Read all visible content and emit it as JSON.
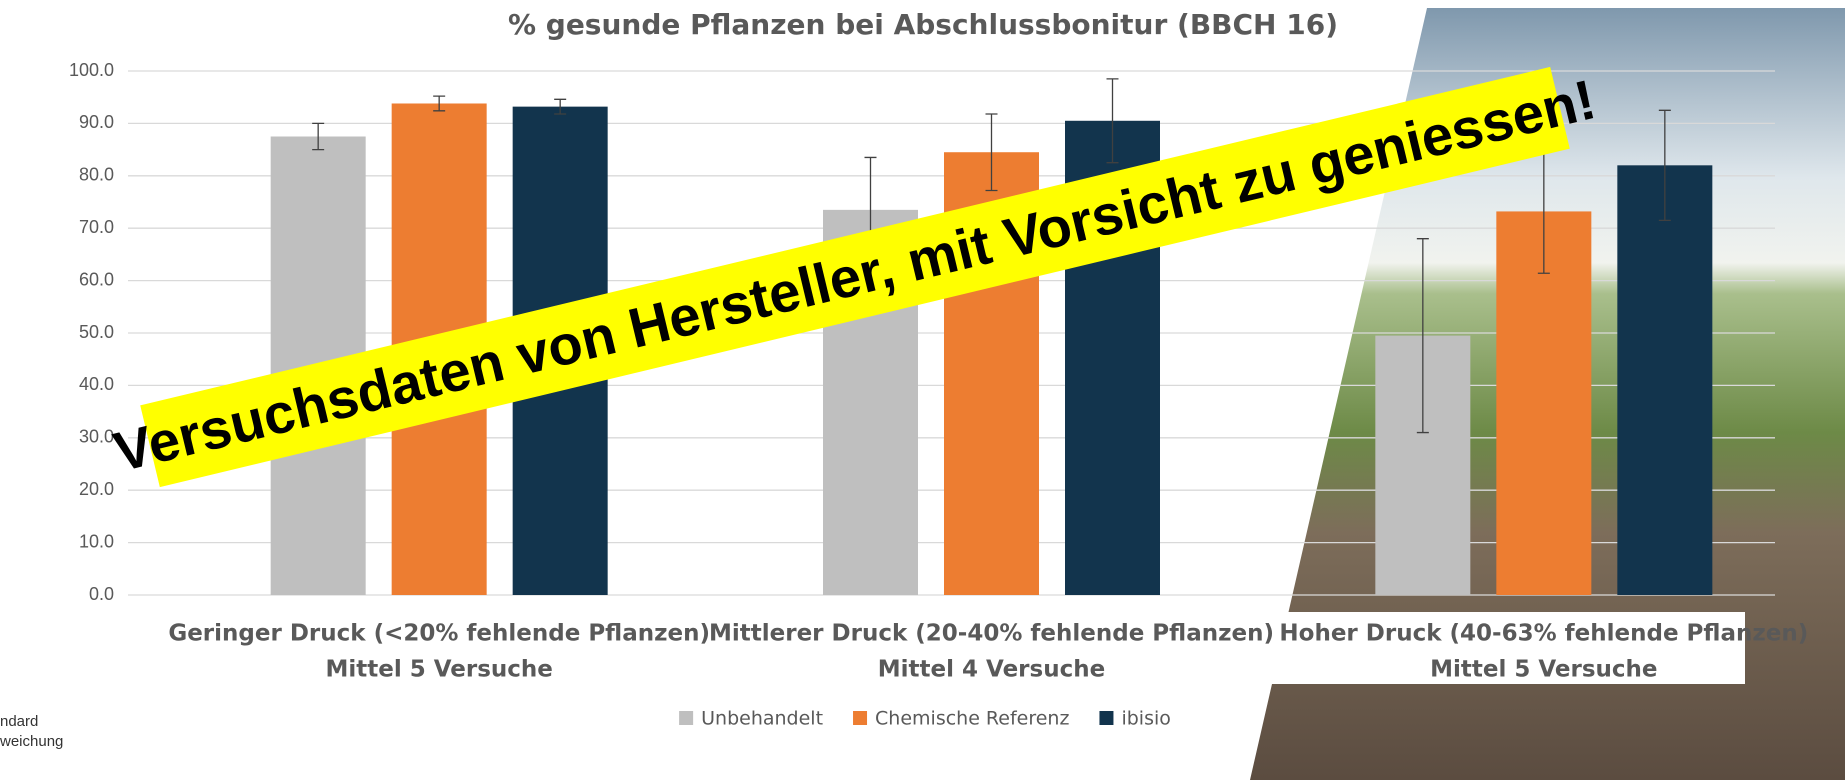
{
  "chart_data": {
    "type": "bar",
    "title": "% gesunde Pflanzen bei Abschlussbonitur (BBCH 16)",
    "categories": [
      [
        "Geringer Druck (<20% fehlende Pflanzen)",
        "Mittel 5 Versuche"
      ],
      [
        "Mittlerer Druck (20-40% fehlende Pflanzen)",
        "Mittel 4 Versuche"
      ],
      [
        "Hoher Druck (40-63% fehlende Pflanzen)",
        "Mittel 5 Versuche"
      ]
    ],
    "series": [
      {
        "name": "Unbehandelt",
        "color": "#bfbfbf",
        "values": [
          87.5,
          73.5,
          49.5
        ],
        "errors": [
          2.5,
          10,
          18.5
        ]
      },
      {
        "name": "Chemische Referenz",
        "color": "#ed7d31",
        "values": [
          93.8,
          84.5,
          73.2
        ],
        "errors": [
          1.4,
          7.3,
          11.8
        ]
      },
      {
        "name": "ibisio",
        "color": "#12344d",
        "values": [
          93.2,
          90.5,
          82
        ],
        "errors": [
          1.4,
          8,
          10.5
        ]
      }
    ],
    "ylim": [
      0,
      100
    ],
    "yticks": [
      {
        "value": 0,
        "label": "0.0"
      },
      {
        "value": 10,
        "label": "10.0"
      },
      {
        "value": 20,
        "label": "20.0"
      },
      {
        "value": 30,
        "label": "30.0"
      },
      {
        "value": 40,
        "label": "40.0"
      },
      {
        "value": 50,
        "label": "50.0"
      },
      {
        "value": 60,
        "label": "60.0"
      },
      {
        "value": 70,
        "label": "70.0"
      },
      {
        "value": 80,
        "label": "80.0"
      },
      {
        "value": 90,
        "label": "90.0"
      },
      {
        "value": 100,
        "label": "100.0"
      }
    ],
    "grid": true,
    "legend": "bottom",
    "annotation": "Versuchsdaten von Hersteller, mit Vorsicht zu geniessen!"
  },
  "side_note": [
    "ndard",
    "weichung"
  ]
}
